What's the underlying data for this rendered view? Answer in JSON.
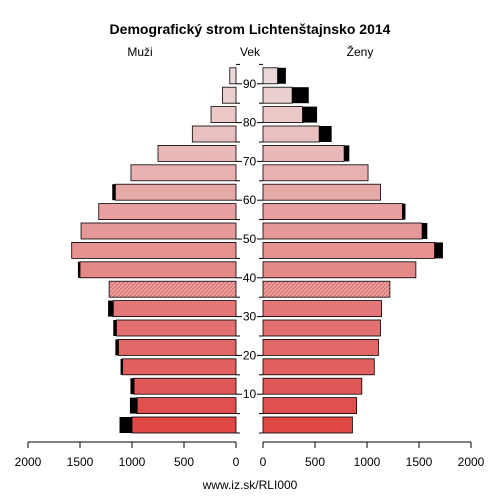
{
  "page": {
    "footer": "www.iz.sk/RLI000"
  },
  "chart_data": {
    "type": "bar",
    "title": "Demografický strom Lichtenštajnsko 2014",
    "left_label": "Muži",
    "center_label": "Vek",
    "right_label": "Ženy",
    "age_groups": [
      "0-4",
      "5-9",
      "10-14",
      "15-19",
      "20-24",
      "25-29",
      "30-34",
      "35-39",
      "40-44",
      "45-49",
      "50-54",
      "55-59",
      "60-64",
      "65-69",
      "70-74",
      "75-79",
      "80-84",
      "85-89",
      "90+"
    ],
    "age_ticks": [
      "10",
      "20",
      "30",
      "40",
      "50",
      "60",
      "70",
      "80",
      "90"
    ],
    "x_ticks_left": [
      "2000",
      "1500",
      "1000",
      "500",
      "0"
    ],
    "x_ticks_right": [
      "0",
      "500",
      "1000",
      "1500",
      "2000"
    ],
    "x_range": [
      0,
      2000
    ],
    "series": [
      {
        "name": "Muži",
        "values": [
          1000,
          950,
          980,
          1090,
          1130,
          1150,
          1180,
          1220,
          1500,
          1580,
          1490,
          1320,
          1160,
          1010,
          750,
          420,
          240,
          130,
          60
        ],
        "highlight": [
          120,
          70,
          35,
          20,
          30,
          30,
          50,
          0,
          20,
          0,
          0,
          0,
          30,
          0,
          0,
          0,
          0,
          0,
          0
        ]
      },
      {
        "name": "Ženy",
        "values": [
          860,
          900,
          950,
          1070,
          1110,
          1130,
          1140,
          1220,
          1470,
          1650,
          1530,
          1340,
          1130,
          1010,
          780,
          540,
          380,
          280,
          140
        ],
        "highlight": [
          0,
          0,
          0,
          0,
          0,
          0,
          0,
          0,
          0,
          80,
          50,
          30,
          0,
          0,
          50,
          120,
          140,
          160,
          80
        ]
      }
    ],
    "hatched_group": "35-39",
    "colors": {
      "gradient_bottom": "#e04848",
      "gradient_top": "#ebd8d8",
      "highlight": "#000000",
      "axis": "#000000"
    },
    "grid": false
  }
}
